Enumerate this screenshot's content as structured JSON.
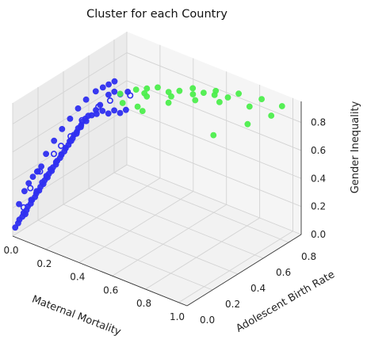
{
  "chart_data": {
    "type": "scatter",
    "projection": "3d",
    "title": "Cluster for each Country",
    "xlabel": "Maternal Mortality",
    "ylabel": "Adolescent Birth Rate",
    "zlabel": "Gender Inequality",
    "x_ticks": [
      "0.0",
      "0.2",
      "0.4",
      "0.6",
      "0.8",
      "1.0"
    ],
    "y_ticks": [
      "0.0",
      "0.2",
      "0.4",
      "0.6",
      "0.8"
    ],
    "z_ticks": [
      "0.0",
      "0.2",
      "0.4",
      "0.6",
      "0.8"
    ],
    "xlim": [
      0,
      1.05
    ],
    "ylim": [
      0,
      0.9
    ],
    "zlim": [
      0,
      0.95
    ],
    "grid": true,
    "legend": "none",
    "series": [
      {
        "color": "#2f2ff0",
        "points": [
          [
            0.0,
            0.02,
            0.05
          ],
          [
            0.01,
            0.03,
            0.08
          ],
          [
            0.01,
            0.04,
            0.1
          ],
          [
            0.02,
            0.05,
            0.12
          ],
          [
            0.02,
            0.06,
            0.14
          ],
          [
            0.03,
            0.07,
            0.16
          ],
          [
            0.03,
            0.08,
            0.18
          ],
          [
            0.04,
            0.09,
            0.2
          ],
          [
            0.04,
            0.1,
            0.22
          ],
          [
            0.05,
            0.11,
            0.24
          ],
          [
            0.05,
            0.12,
            0.26
          ],
          [
            0.06,
            0.13,
            0.28
          ],
          [
            0.06,
            0.14,
            0.3
          ],
          [
            0.07,
            0.15,
            0.32
          ],
          [
            0.07,
            0.16,
            0.34
          ],
          [
            0.08,
            0.17,
            0.36
          ],
          [
            0.08,
            0.18,
            0.38
          ],
          [
            0.09,
            0.19,
            0.4
          ],
          [
            0.09,
            0.2,
            0.42
          ],
          [
            0.1,
            0.21,
            0.44
          ],
          [
            0.1,
            0.22,
            0.46
          ],
          [
            0.11,
            0.23,
            0.48
          ],
          [
            0.11,
            0.24,
            0.5
          ],
          [
            0.12,
            0.25,
            0.52
          ],
          [
            0.12,
            0.26,
            0.54
          ],
          [
            0.13,
            0.27,
            0.56
          ],
          [
            0.13,
            0.28,
            0.58
          ],
          [
            0.14,
            0.29,
            0.6
          ],
          [
            0.14,
            0.3,
            0.62
          ],
          [
            0.15,
            0.31,
            0.64
          ],
          [
            0.15,
            0.32,
            0.66
          ],
          [
            0.16,
            0.33,
            0.68
          ],
          [
            0.16,
            0.34,
            0.7
          ],
          [
            0.17,
            0.35,
            0.72
          ],
          [
            0.18,
            0.36,
            0.74
          ],
          [
            0.0,
            0.1,
            0.1
          ],
          [
            0.02,
            0.12,
            0.2
          ],
          [
            0.03,
            0.15,
            0.25
          ],
          [
            0.04,
            0.18,
            0.3
          ],
          [
            0.05,
            0.2,
            0.34
          ],
          [
            0.06,
            0.22,
            0.38
          ],
          [
            0.07,
            0.25,
            0.42
          ],
          [
            0.08,
            0.28,
            0.46
          ],
          [
            0.09,
            0.3,
            0.5
          ],
          [
            0.1,
            0.33,
            0.54
          ],
          [
            0.11,
            0.36,
            0.58
          ],
          [
            0.12,
            0.38,
            0.62
          ],
          [
            0.13,
            0.41,
            0.65
          ],
          [
            0.14,
            0.44,
            0.68
          ],
          [
            0.15,
            0.46,
            0.71
          ],
          [
            0.16,
            0.48,
            0.74
          ],
          [
            0.0,
            0.2,
            0.35
          ],
          [
            0.01,
            0.25,
            0.45
          ],
          [
            0.02,
            0.3,
            0.52
          ],
          [
            0.03,
            0.35,
            0.58
          ],
          [
            0.04,
            0.4,
            0.63
          ],
          [
            0.05,
            0.45,
            0.68
          ],
          [
            0.06,
            0.5,
            0.72
          ],
          [
            0.08,
            0.55,
            0.76
          ],
          [
            0.1,
            0.58,
            0.78
          ],
          [
            0.12,
            0.6,
            0.8
          ],
          [
            0.14,
            0.62,
            0.82
          ],
          [
            0.2,
            0.4,
            0.74
          ],
          [
            0.22,
            0.42,
            0.76
          ],
          [
            0.24,
            0.44,
            0.74
          ],
          [
            0.26,
            0.46,
            0.76
          ],
          [
            0.28,
            0.48,
            0.74
          ],
          [
            0.3,
            0.5,
            0.76
          ],
          [
            0.18,
            0.52,
            0.8
          ],
          [
            0.2,
            0.54,
            0.82
          ],
          [
            0.22,
            0.56,
            0.8
          ],
          [
            0.25,
            0.58,
            0.82
          ],
          [
            0.0,
            0.05,
            0.2
          ],
          [
            0.01,
            0.08,
            0.28
          ],
          [
            0.02,
            0.1,
            0.33
          ],
          [
            0.03,
            0.12,
            0.37
          ],
          [
            0.04,
            0.14,
            0.4
          ],
          [
            0.05,
            0.16,
            0.43
          ]
        ]
      },
      {
        "color": "#2f2ff0",
        "marker": "open",
        "points": [
          [
            0.05,
            0.15,
            0.4
          ],
          [
            0.1,
            0.25,
            0.55
          ],
          [
            0.15,
            0.35,
            0.7
          ],
          [
            0.22,
            0.48,
            0.8
          ],
          [
            0.28,
            0.56,
            0.82
          ],
          [
            0.03,
            0.1,
            0.3
          ],
          [
            0.08,
            0.22,
            0.5
          ],
          [
            0.12,
            0.3,
            0.6
          ],
          [
            0.18,
            0.44,
            0.76
          ],
          [
            0.02,
            0.06,
            0.18
          ]
        ]
      },
      {
        "color": "#4dee4d",
        "points": [
          [
            0.25,
            0.52,
            0.84
          ],
          [
            0.3,
            0.58,
            0.86
          ],
          [
            0.35,
            0.6,
            0.88
          ],
          [
            0.4,
            0.62,
            0.9
          ],
          [
            0.45,
            0.64,
            0.88
          ],
          [
            0.5,
            0.66,
            0.9
          ],
          [
            0.55,
            0.7,
            0.92
          ],
          [
            0.6,
            0.72,
            0.9
          ],
          [
            0.65,
            0.75,
            0.92
          ],
          [
            0.7,
            0.78,
            0.88
          ],
          [
            0.75,
            0.8,
            0.92
          ],
          [
            0.85,
            0.85,
            0.9
          ],
          [
            0.95,
            0.88,
            0.88
          ],
          [
            0.32,
            0.62,
            0.82
          ],
          [
            0.42,
            0.7,
            0.8
          ],
          [
            0.52,
            0.74,
            0.84
          ],
          [
            0.62,
            0.78,
            0.86
          ],
          [
            0.38,
            0.56,
            0.86
          ],
          [
            0.48,
            0.6,
            0.84
          ],
          [
            0.58,
            0.68,
            0.86
          ],
          [
            0.68,
            0.74,
            0.86
          ],
          [
            0.8,
            0.82,
            0.84
          ],
          [
            0.9,
            0.86,
            0.8
          ],
          [
            0.88,
            0.7,
            0.82
          ],
          [
            0.72,
            0.64,
            0.7
          ],
          [
            0.4,
            0.5,
            0.8
          ],
          [
            0.34,
            0.54,
            0.78
          ],
          [
            0.28,
            0.5,
            0.8
          ]
        ]
      }
    ]
  }
}
